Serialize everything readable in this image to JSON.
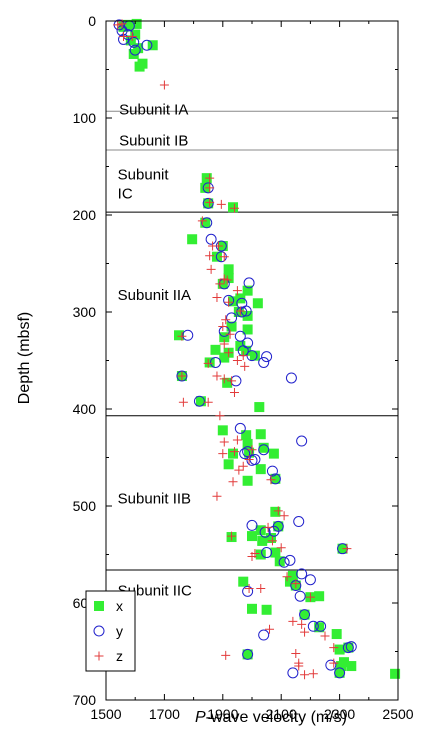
{
  "chart_data": {
    "type": "scatter",
    "xlabel_prefix": "P",
    "xlabel_suffix": "-wave velocity (m/s)",
    "ylabel": "Depth (mbsf)",
    "xlim": [
      1500,
      2500
    ],
    "ylim": [
      0,
      700
    ],
    "y_inverted": true,
    "x_ticks": [
      1500,
      1700,
      1900,
      2100,
      2300,
      2500
    ],
    "y_ticks": [
      0,
      100,
      200,
      300,
      400,
      500,
      600,
      700
    ],
    "colors": {
      "x": "#33ee33",
      "y": "#2222cc",
      "z": "#e23b3b",
      "boundary_line_thin": "#888888",
      "boundary_line_dark": "#000000"
    },
    "boundaries": [
      {
        "depth": 93,
        "style": "thin"
      },
      {
        "depth": 133,
        "style": "thin"
      },
      {
        "depth": 197,
        "style": "dark"
      },
      {
        "depth": 407,
        "style": "dark"
      },
      {
        "depth": 566,
        "style": "dark"
      }
    ],
    "units": [
      {
        "lines": [
          "Subunit IA"
        ],
        "x": 1545,
        "y": 84
      },
      {
        "lines": [
          "Subunit IB"
        ],
        "x": 1545,
        "y": 116
      },
      {
        "lines": [
          "Subunit",
          "IC"
        ],
        "x": 1540,
        "y": 151
      },
      {
        "lines": [
          "Subunit IIA"
        ],
        "x": 1540,
        "y": 275
      },
      {
        "lines": [
          "Subunit IIB"
        ],
        "x": 1540,
        "y": 485
      },
      {
        "lines": [
          "Subunit IIC"
        ],
        "x": 1540,
        "y": 580
      }
    ],
    "series": [
      {
        "name": "x",
        "marker": "square",
        "points": [
          [
            1560,
            6
          ],
          [
            1575,
            4
          ],
          [
            1605,
            3
          ],
          [
            1600,
            14
          ],
          [
            1585,
            20
          ],
          [
            1610,
            28
          ],
          [
            1595,
            34
          ],
          [
            1625,
            44
          ],
          [
            1615,
            47
          ],
          [
            1660,
            25
          ],
          [
            1845,
            162
          ],
          [
            1840,
            172
          ],
          [
            1850,
            188
          ],
          [
            1935,
            192
          ],
          [
            1840,
            208
          ],
          [
            1795,
            225
          ],
          [
            1900,
            232
          ],
          [
            1880,
            243
          ],
          [
            1920,
            256
          ],
          [
            1920,
            265
          ],
          [
            1900,
            271
          ],
          [
            1985,
            278
          ],
          [
            1935,
            289
          ],
          [
            1960,
            286
          ],
          [
            2020,
            291
          ],
          [
            1955,
            300
          ],
          [
            1985,
            304
          ],
          [
            1930,
            315
          ],
          [
            1985,
            318
          ],
          [
            1905,
            326
          ],
          [
            1960,
            335
          ],
          [
            1920,
            342
          ],
          [
            1875,
            339
          ],
          [
            1750,
            324
          ],
          [
            1980,
            340
          ],
          [
            2010,
            345
          ],
          [
            1905,
            347
          ],
          [
            1855,
            352
          ],
          [
            1760,
            366
          ],
          [
            1915,
            373
          ],
          [
            1825,
            392
          ],
          [
            2025,
            398
          ],
          [
            1900,
            422
          ],
          [
            1980,
            427
          ],
          [
            2030,
            426
          ],
          [
            1985,
            436
          ],
          [
            1935,
            446
          ],
          [
            1990,
            445
          ],
          [
            2040,
            440
          ],
          [
            2075,
            446
          ],
          [
            1920,
            457
          ],
          [
            2030,
            462
          ],
          [
            1985,
            474
          ],
          [
            2080,
            472
          ],
          [
            2080,
            506
          ],
          [
            2090,
            521
          ],
          [
            2030,
            525
          ],
          [
            2000,
            531
          ],
          [
            2035,
            536
          ],
          [
            1930,
            532
          ],
          [
            2065,
            533
          ],
          [
            2030,
            550
          ],
          [
            2080,
            548
          ],
          [
            2095,
            557
          ],
          [
            2310,
            544
          ],
          [
            2140,
            572
          ],
          [
            2150,
            582
          ],
          [
            2130,
            578
          ],
          [
            1970,
            578
          ],
          [
            2200,
            594
          ],
          [
            2230,
            593
          ],
          [
            2180,
            612
          ],
          [
            2050,
            607
          ],
          [
            2000,
            606
          ],
          [
            2230,
            625
          ],
          [
            2290,
            632
          ],
          [
            2300,
            648
          ],
          [
            2330,
            646
          ],
          [
            2315,
            661
          ],
          [
            2340,
            665
          ],
          [
            2305,
            665
          ],
          [
            2300,
            672
          ],
          [
            1985,
            653
          ],
          [
            2490,
            673
          ]
        ]
      },
      {
        "name": "y",
        "marker": "circle",
        "points": [
          [
            1545,
            4
          ],
          [
            1555,
            10
          ],
          [
            1580,
            5
          ],
          [
            1575,
            14
          ],
          [
            1560,
            19
          ],
          [
            1595,
            22
          ],
          [
            1600,
            30
          ],
          [
            1640,
            25
          ],
          [
            1850,
            172
          ],
          [
            1850,
            188
          ],
          [
            1845,
            208
          ],
          [
            1860,
            225
          ],
          [
            1895,
            232
          ],
          [
            1895,
            243
          ],
          [
            1905,
            271
          ],
          [
            1990,
            270
          ],
          [
            1920,
            288
          ],
          [
            1965,
            291
          ],
          [
            1965,
            300
          ],
          [
            1980,
            299
          ],
          [
            1930,
            306
          ],
          [
            1905,
            320
          ],
          [
            1960,
            325
          ],
          [
            1780,
            324
          ],
          [
            1985,
            332
          ],
          [
            1970,
            340
          ],
          [
            2000,
            345
          ],
          [
            2050,
            346
          ],
          [
            2040,
            352
          ],
          [
            1875,
            352
          ],
          [
            1945,
            371
          ],
          [
            2135,
            368
          ],
          [
            1760,
            366
          ],
          [
            1820,
            392
          ],
          [
            1960,
            420
          ],
          [
            1985,
            444
          ],
          [
            1975,
            446
          ],
          [
            2000,
            453
          ],
          [
            2010,
            452
          ],
          [
            2040,
            442
          ],
          [
            2070,
            464
          ],
          [
            2080,
            472
          ],
          [
            2170,
            433
          ],
          [
            2090,
            521
          ],
          [
            2000,
            520
          ],
          [
            2045,
            527
          ],
          [
            2075,
            526
          ],
          [
            2160,
            516
          ],
          [
            2050,
            548
          ],
          [
            2130,
            556
          ],
          [
            2110,
            558
          ],
          [
            2310,
            544
          ],
          [
            2150,
            582
          ],
          [
            2170,
            570
          ],
          [
            2200,
            576
          ],
          [
            2165,
            593
          ],
          [
            1985,
            588
          ],
          [
            2180,
            612
          ],
          [
            2210,
            624
          ],
          [
            2235,
            624
          ],
          [
            2040,
            633
          ],
          [
            2330,
            646
          ],
          [
            2340,
            645
          ],
          [
            2270,
            664
          ],
          [
            2300,
            672
          ],
          [
            2140,
            672
          ],
          [
            1985,
            653
          ]
        ]
      },
      {
        "name": "z",
        "marker": "plus",
        "points": [
          [
            1540,
            4
          ],
          [
            1555,
            3
          ],
          [
            1560,
            16
          ],
          [
            1590,
            16
          ],
          [
            1700,
            66
          ],
          [
            1855,
            162
          ],
          [
            1855,
            172
          ],
          [
            1855,
            187
          ],
          [
            1895,
            189
          ],
          [
            1940,
            193
          ],
          [
            1830,
            206
          ],
          [
            1865,
            232
          ],
          [
            1885,
            232
          ],
          [
            1855,
            242
          ],
          [
            1905,
            243
          ],
          [
            1860,
            256
          ],
          [
            1890,
            271
          ],
          [
            1905,
            266
          ],
          [
            1915,
            267
          ],
          [
            1950,
            278
          ],
          [
            1880,
            285
          ],
          [
            1920,
            290
          ],
          [
            1960,
            299
          ],
          [
            1910,
            308
          ],
          [
            1900,
            315
          ],
          [
            1925,
            323
          ],
          [
            1905,
            333
          ],
          [
            1920,
            342
          ],
          [
            1760,
            325
          ],
          [
            1950,
            350
          ],
          [
            1970,
            345
          ],
          [
            1975,
            356
          ],
          [
            1850,
            353
          ],
          [
            1880,
            366
          ],
          [
            1905,
            369
          ],
          [
            1930,
            371
          ],
          [
            1760,
            366
          ],
          [
            1940,
            383
          ],
          [
            1765,
            393
          ],
          [
            1850,
            393
          ],
          [
            1890,
            407
          ],
          [
            1905,
            434
          ],
          [
            1900,
            446
          ],
          [
            1950,
            432
          ],
          [
            1940,
            444
          ],
          [
            1970,
            459
          ],
          [
            1990,
            452
          ],
          [
            2000,
            442
          ],
          [
            1955,
            463
          ],
          [
            1935,
            475
          ],
          [
            2065,
            473
          ],
          [
            1880,
            490
          ],
          [
            2090,
            505
          ],
          [
            2110,
            510
          ],
          [
            2055,
            522
          ],
          [
            2070,
            536
          ],
          [
            2100,
            543
          ],
          [
            2010,
            549
          ],
          [
            2000,
            552
          ],
          [
            1930,
            531
          ],
          [
            2325,
            544
          ],
          [
            2150,
            580
          ],
          [
            2120,
            573
          ],
          [
            2200,
            594
          ],
          [
            1990,
            585
          ],
          [
            2030,
            585
          ],
          [
            2170,
            622
          ],
          [
            2140,
            619
          ],
          [
            2180,
            630
          ],
          [
            2060,
            627
          ],
          [
            2250,
            634
          ],
          [
            2280,
            646
          ],
          [
            2150,
            652
          ],
          [
            2160,
            662
          ],
          [
            2280,
            662
          ],
          [
            2180,
            674
          ],
          [
            2210,
            673
          ],
          [
            2160,
            665
          ],
          [
            1910,
            654
          ]
        ]
      }
    ]
  },
  "legend": {
    "items": [
      {
        "key": "x",
        "label": "x"
      },
      {
        "key": "y",
        "label": "y"
      },
      {
        "key": "z",
        "label": "z"
      }
    ]
  }
}
